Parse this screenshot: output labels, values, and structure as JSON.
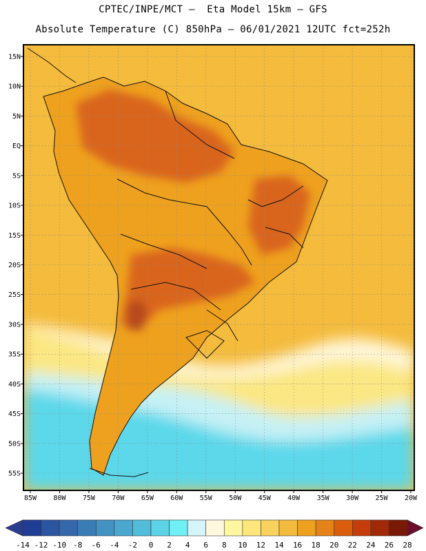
{
  "header": {
    "line1": "CPTEC/INPE/MCT —  Eta Model 15km — GFS",
    "line2": "Absolute Temperature (C) 850hPa — 06/01/2021 12UTC fct=252h"
  },
  "axes": {
    "lat_labels": [
      "15N",
      "10N",
      "5N",
      "EQ",
      "5S",
      "10S",
      "15S",
      "20S",
      "25S",
      "30S",
      "35S",
      "40S",
      "45S",
      "50S",
      "55S"
    ],
    "lon_labels": [
      "85W",
      "80W",
      "75W",
      "70W",
      "65W",
      "60W",
      "55W",
      "50W",
      "45W",
      "40W",
      "35W",
      "30W",
      "25W",
      "20W"
    ]
  },
  "colorbar": {
    "labels": [
      "-14",
      "-12",
      "-10",
      "-8",
      "-6",
      "-4",
      "-2",
      "0",
      "2",
      "4",
      "6",
      "8",
      "10",
      "12",
      "14",
      "16",
      "18",
      "20",
      "22",
      "24",
      "26",
      "28"
    ],
    "colors": [
      "#1f3d94",
      "#2b559f",
      "#3468aa",
      "#3a7db6",
      "#4392c4",
      "#4aa7cf",
      "#52bdd9",
      "#5cd3e6",
      "#6ff0f5",
      "#d4f5f9",
      "#fff8e0",
      "#fff7a0",
      "#fde67a",
      "#f8d25c",
      "#f2bb3c",
      "#eea11e",
      "#e48318",
      "#d95d0c",
      "#c43d0a",
      "#a02a08",
      "#7a1a06"
    ],
    "under_color": "#2a3c8f",
    "over_color": "#6e0b2a"
  },
  "colors": {
    "ocean_warm": "#f4bb3c",
    "land": "#eea11e",
    "land_hot": "#d9651c",
    "land_hottest": "#b7481a",
    "cool_yellow": "#fbe783",
    "pale": "#fff7d9",
    "cyan": "#5cd8ea",
    "light_cyan": "#c6f1f5",
    "coast": "#111111"
  }
}
